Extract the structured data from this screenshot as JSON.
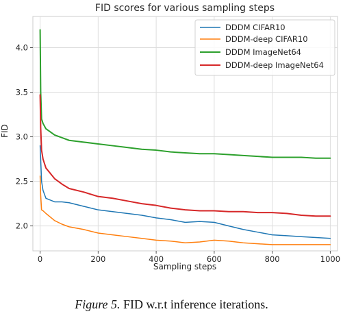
{
  "chart_data": {
    "type": "line",
    "title": "FID scores for various sampling steps",
    "xlabel": "Sampling steps",
    "ylabel": "FID",
    "xlim": [
      -25,
      1025
    ],
    "ylim": [
      1.72,
      4.35
    ],
    "xticks": [
      0,
      200,
      400,
      600,
      800,
      1000
    ],
    "yticks": [
      2.0,
      2.5,
      3.0,
      3.5,
      4.0
    ],
    "grid": true,
    "legend_position": "top-right",
    "series": [
      {
        "name": "DDDM CIFAR10",
        "color": "#1f77b4",
        "x": [
          0,
          2,
          5,
          10,
          20,
          50,
          75,
          100,
          150,
          200,
          250,
          300,
          350,
          400,
          450,
          500,
          550,
          600,
          650,
          700,
          750,
          800,
          850,
          900,
          950,
          1000
        ],
        "y": [
          2.9,
          2.75,
          2.5,
          2.4,
          2.31,
          2.27,
          2.27,
          2.26,
          2.22,
          2.18,
          2.16,
          2.14,
          2.12,
          2.09,
          2.07,
          2.04,
          2.05,
          2.04,
          2.0,
          1.96,
          1.93,
          1.9,
          1.89,
          1.88,
          1.87,
          1.86
        ]
      },
      {
        "name": "DDDM-deep CIFAR10",
        "color": "#ff7f0e",
        "x": [
          0,
          2,
          5,
          10,
          20,
          50,
          75,
          100,
          150,
          200,
          250,
          300,
          350,
          400,
          450,
          500,
          550,
          600,
          650,
          700,
          750,
          800,
          850,
          900,
          950,
          1000
        ],
        "y": [
          2.56,
          2.35,
          2.18,
          2.17,
          2.14,
          2.06,
          2.02,
          1.99,
          1.96,
          1.92,
          1.9,
          1.88,
          1.86,
          1.84,
          1.83,
          1.81,
          1.82,
          1.84,
          1.83,
          1.81,
          1.8,
          1.79,
          1.79,
          1.79,
          1.79,
          1.79
        ]
      },
      {
        "name": "DDDM ImageNet64",
        "color": "#2ca02c",
        "x": [
          0,
          2,
          5,
          10,
          20,
          50,
          75,
          100,
          150,
          200,
          250,
          300,
          350,
          400,
          450,
          500,
          550,
          600,
          650,
          700,
          750,
          800,
          850,
          900,
          950,
          1000
        ],
        "y": [
          4.2,
          3.5,
          3.2,
          3.15,
          3.09,
          3.02,
          2.99,
          2.96,
          2.94,
          2.92,
          2.9,
          2.88,
          2.86,
          2.85,
          2.83,
          2.82,
          2.81,
          2.81,
          2.8,
          2.79,
          2.78,
          2.77,
          2.77,
          2.77,
          2.76,
          2.76
        ]
      },
      {
        "name": "DDDM-deep ImageNet64",
        "color": "#d62728",
        "x": [
          0,
          2,
          5,
          10,
          20,
          50,
          75,
          100,
          150,
          200,
          250,
          300,
          350,
          400,
          450,
          500,
          550,
          600,
          650,
          700,
          750,
          800,
          850,
          900,
          950,
          1000
        ],
        "y": [
          3.47,
          3.1,
          2.85,
          2.75,
          2.65,
          2.53,
          2.47,
          2.42,
          2.38,
          2.33,
          2.31,
          2.28,
          2.25,
          2.23,
          2.2,
          2.18,
          2.17,
          2.17,
          2.16,
          2.16,
          2.15,
          2.15,
          2.14,
          2.12,
          2.11,
          2.11
        ]
      }
    ]
  },
  "caption": {
    "figure_label": "Figure 5.",
    "text": "FID w.r.t inference iterations."
  }
}
